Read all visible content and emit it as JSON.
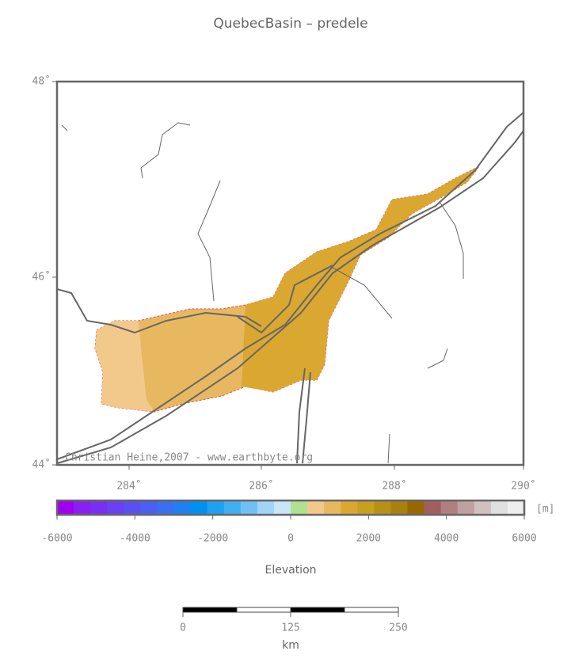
{
  "title": "QuebecBasin – predele",
  "map": {
    "lat_labels": [
      "48˚",
      "46˚",
      "44˚"
    ],
    "lon_labels": [
      "284˚",
      "286˚",
      "288˚",
      "290˚"
    ],
    "credit": "Christian Heine,2007 - www.earthbyte.org"
  },
  "colorbar": {
    "ticks": [
      "-6000",
      "-4000",
      "-2000",
      "0",
      "2000",
      "4000",
      "6000"
    ],
    "unit": "[m]",
    "label": "Elevation"
  },
  "scalebar": {
    "ticks": [
      "0",
      "125",
      "250"
    ],
    "unit": "km"
  }
}
